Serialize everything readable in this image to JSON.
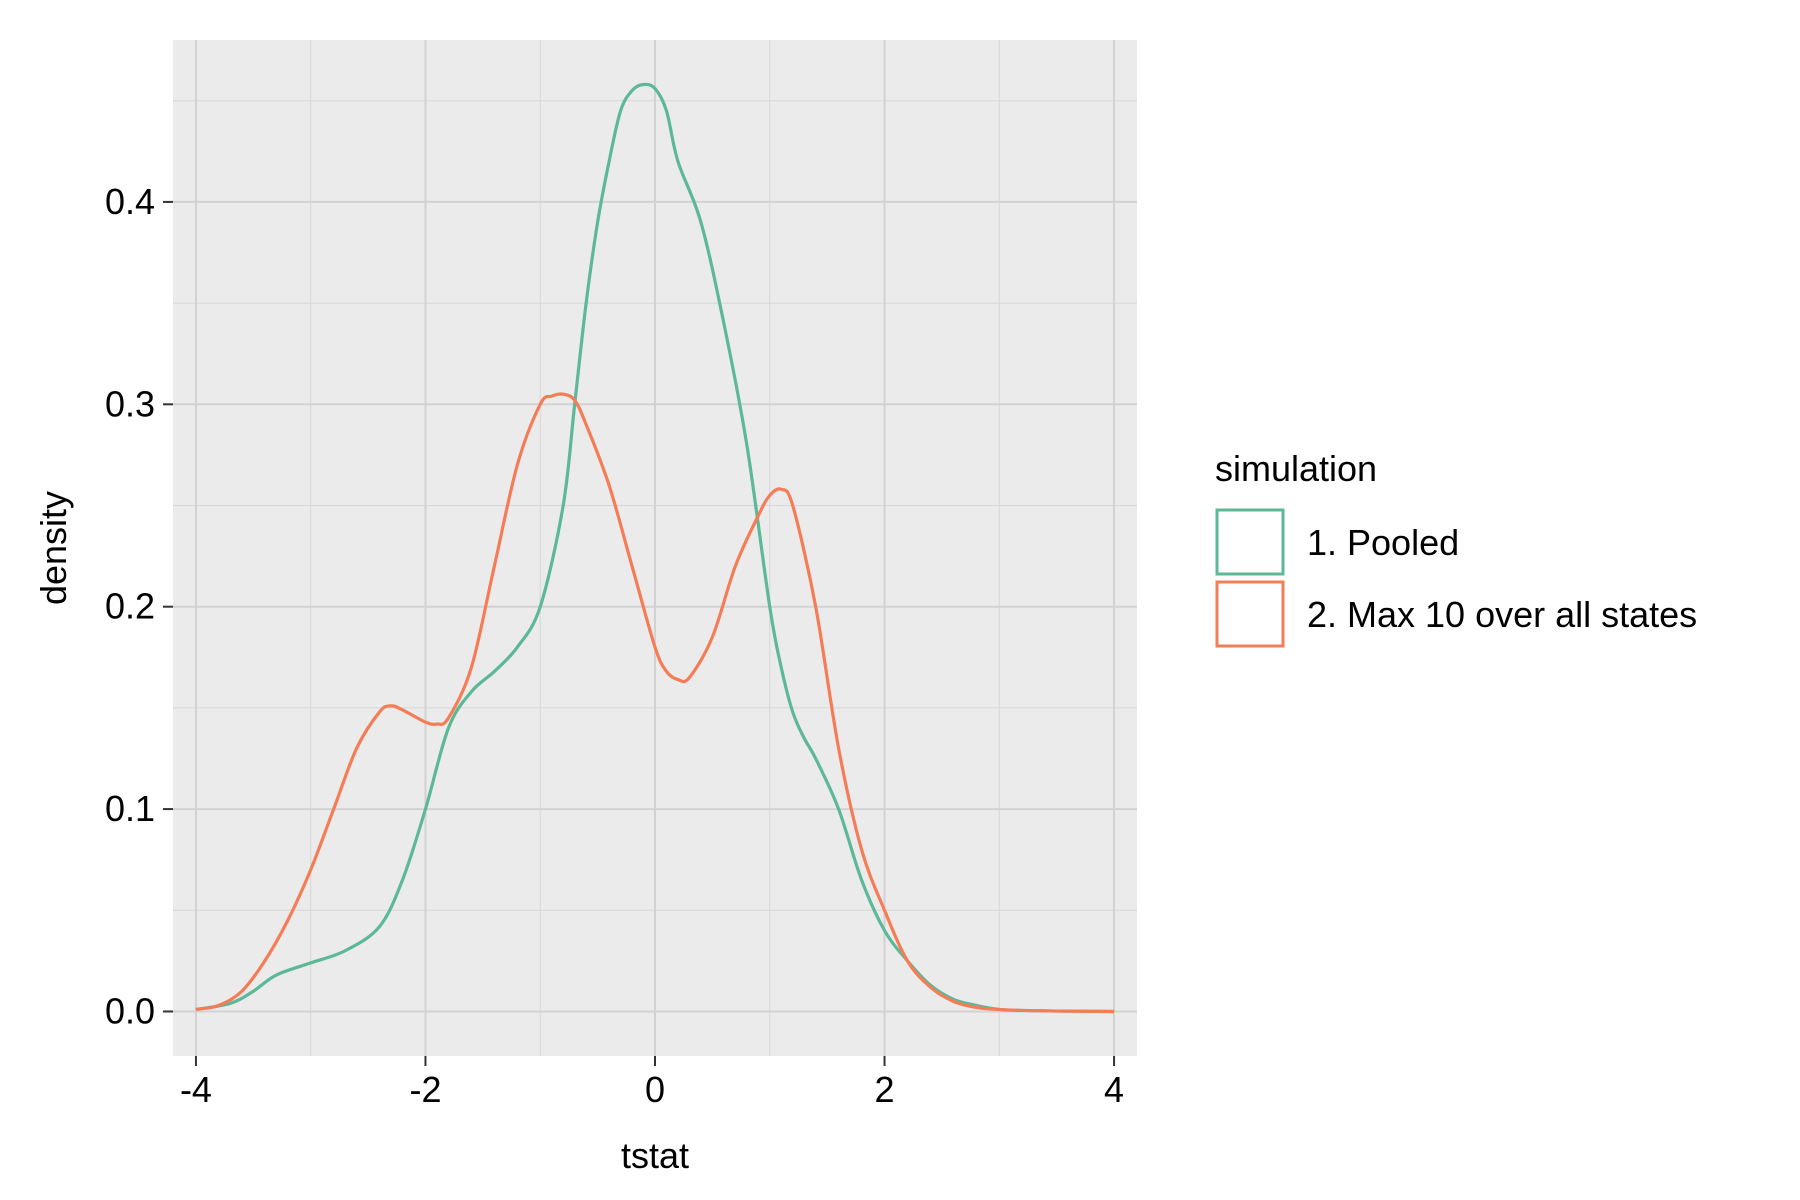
{
  "chart_data": {
    "type": "line",
    "title": "",
    "xlabel": "tstat",
    "ylabel": "density",
    "xlim": [
      -4.2,
      4.2
    ],
    "ylim": [
      -0.022,
      0.48
    ],
    "x_ticks": [
      -4,
      -2,
      0,
      2,
      4
    ],
    "x_tick_labels": [
      "-4",
      "-2",
      "0",
      "2",
      "4"
    ],
    "y_ticks": [
      0.0,
      0.1,
      0.2,
      0.3,
      0.4
    ],
    "y_tick_labels": [
      "0.0",
      "0.1",
      "0.2",
      "0.3",
      "0.4"
    ],
    "grid": true,
    "legend": {
      "title": "simulation",
      "position": "right"
    },
    "series": [
      {
        "name": "1. Pooled",
        "color": "#5CB896",
        "x": [
          -4.0,
          -3.7,
          -3.5,
          -3.3,
          -3.0,
          -2.7,
          -2.4,
          -2.2,
          -2.0,
          -1.8,
          -1.6,
          -1.4,
          -1.2,
          -1.0,
          -0.8,
          -0.7,
          -0.6,
          -0.5,
          -0.4,
          -0.3,
          -0.2,
          -0.1,
          0.0,
          0.1,
          0.2,
          0.4,
          0.6,
          0.8,
          1.0,
          1.1,
          1.2,
          1.3,
          1.4,
          1.6,
          1.8,
          2.0,
          2.2,
          2.4,
          2.6,
          2.8,
          3.0,
          3.2,
          3.5,
          4.0
        ],
        "y": [
          0.001,
          0.004,
          0.01,
          0.018,
          0.024,
          0.03,
          0.042,
          0.065,
          0.1,
          0.14,
          0.158,
          0.168,
          0.18,
          0.2,
          0.25,
          0.3,
          0.35,
          0.39,
          0.42,
          0.445,
          0.455,
          0.458,
          0.456,
          0.445,
          0.42,
          0.39,
          0.34,
          0.28,
          0.2,
          0.17,
          0.148,
          0.135,
          0.125,
          0.1,
          0.065,
          0.04,
          0.025,
          0.013,
          0.006,
          0.003,
          0.001,
          0.0005,
          0.0002,
          0.0
        ]
      },
      {
        "name": "2. Max 10 over all states",
        "color": "#F47D57",
        "x": [
          -4.0,
          -3.8,
          -3.6,
          -3.4,
          -3.2,
          -3.0,
          -2.8,
          -2.6,
          -2.4,
          -2.3,
          -2.2,
          -2.0,
          -1.9,
          -1.8,
          -1.6,
          -1.4,
          -1.2,
          -1.0,
          -0.9,
          -0.8,
          -0.7,
          -0.6,
          -0.4,
          -0.2,
          0.0,
          0.1,
          0.2,
          0.3,
          0.5,
          0.7,
          0.9,
          1.0,
          1.1,
          1.2,
          1.4,
          1.6,
          1.8,
          2.0,
          2.2,
          2.4,
          2.6,
          2.8,
          3.0,
          3.2,
          3.5,
          4.0
        ],
        "y": [
          0.001,
          0.003,
          0.01,
          0.025,
          0.045,
          0.07,
          0.1,
          0.13,
          0.148,
          0.151,
          0.149,
          0.143,
          0.142,
          0.145,
          0.17,
          0.22,
          0.27,
          0.3,
          0.304,
          0.305,
          0.302,
          0.29,
          0.26,
          0.22,
          0.18,
          0.168,
          0.164,
          0.165,
          0.185,
          0.22,
          0.245,
          0.255,
          0.258,
          0.25,
          0.2,
          0.13,
          0.08,
          0.05,
          0.025,
          0.012,
          0.005,
          0.002,
          0.001,
          0.0005,
          0.0002,
          0.0
        ]
      }
    ]
  }
}
